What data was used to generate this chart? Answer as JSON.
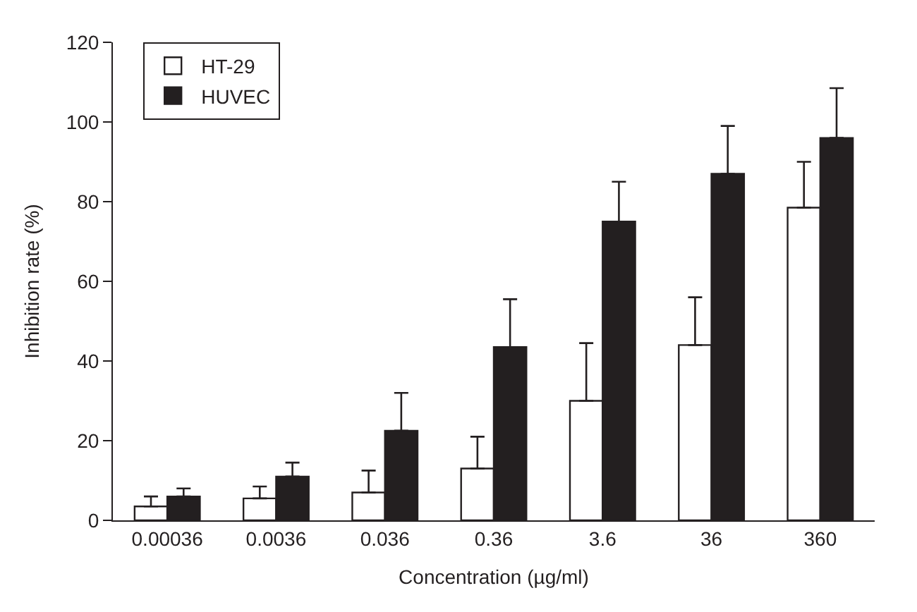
{
  "chart_data": {
    "type": "bar",
    "xlabel": "Concentration (µg/ml)",
    "ylabel": "Inhibition rate (%)",
    "categories": [
      "0.00036",
      "0.0036",
      "0.036",
      "0.36",
      "3.6",
      "36",
      "360"
    ],
    "series": [
      {
        "name": "HT-29",
        "color": "#ffffff",
        "values": [
          3.5,
          5.5,
          7,
          13,
          30,
          44,
          78.5
        ],
        "errors": [
          [
            3.5,
            6
          ],
          [
            5.5,
            8.5
          ],
          [
            7,
            12.5
          ],
          [
            13,
            21
          ],
          [
            30,
            44.5
          ],
          [
            44,
            56
          ],
          [
            78.5,
            90
          ]
        ]
      },
      {
        "name": "HUVEC",
        "color": "#231f20",
        "values": [
          6,
          11,
          22.5,
          43.5,
          75,
          87,
          96
        ],
        "errors": [
          [
            6,
            8
          ],
          [
            11,
            14.5
          ],
          [
            22.5,
            32
          ],
          [
            43.5,
            55.5
          ],
          [
            75,
            85
          ],
          [
            87,
            99
          ],
          [
            96,
            108.5
          ]
        ]
      }
    ],
    "ylim": [
      0,
      120
    ],
    "yticks": [
      0,
      20,
      40,
      60,
      80,
      100,
      120
    ],
    "legend": "top left"
  }
}
